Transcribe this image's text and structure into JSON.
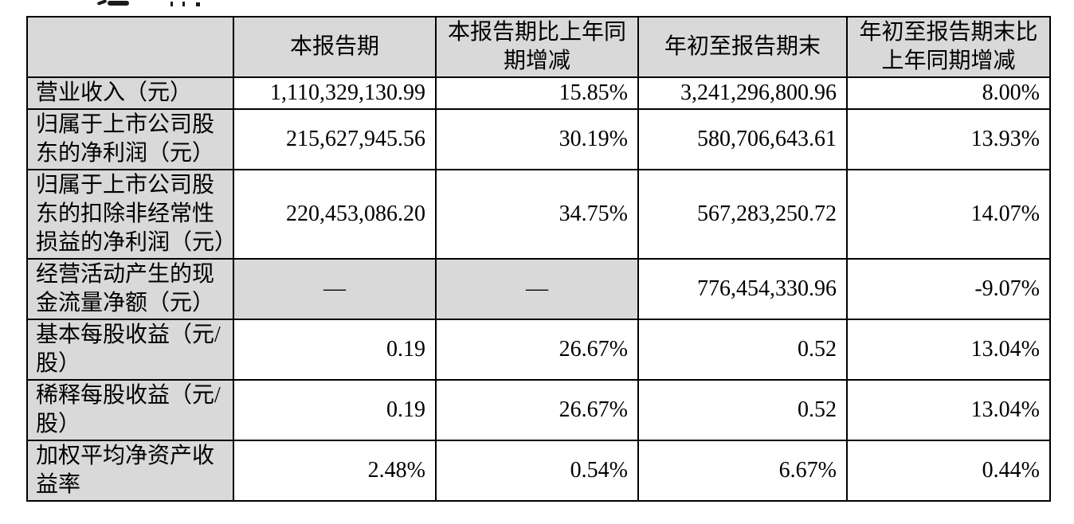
{
  "page": {
    "background": "#ffffff",
    "note_fragment": "clipped-illegible-text-at-top-edge"
  },
  "table": {
    "colors": {
      "header_bg": "#d9d9d9",
      "label_bg": "#d9d9d9",
      "border": "#000000",
      "text": "#000000"
    },
    "headers": [
      "",
      "本报告期",
      "本报告期比上年同期增减",
      "年初至报告期末",
      "年初至报告期末比上年同期增减"
    ],
    "rows": [
      {
        "label": "营业收入（元）",
        "values": [
          "1,110,329,130.99",
          "15.85%",
          "3,241,296,800.96",
          "8.00%"
        ],
        "gray_cells": []
      },
      {
        "label": "归属于上市公司股东的净利润（元）",
        "values": [
          "215,627,945.56",
          "30.19%",
          "580,706,643.61",
          "13.93%"
        ],
        "gray_cells": []
      },
      {
        "label": "归属于上市公司股东的扣除非经常性损益的净利润（元）",
        "values": [
          "220,453,086.20",
          "34.75%",
          "567,283,250.72",
          "14.07%"
        ],
        "gray_cells": []
      },
      {
        "label": "经营活动产生的现金流量净额（元）",
        "values": [
          "—",
          "—",
          "776,454,330.96",
          "-9.07%"
        ],
        "gray_cells": [
          0,
          1
        ]
      },
      {
        "label": "基本每股收益（元/股）",
        "values": [
          "0.19",
          "26.67%",
          "0.52",
          "13.04%"
        ],
        "gray_cells": []
      },
      {
        "label": "稀释每股收益（元/股）",
        "values": [
          "0.19",
          "26.67%",
          "0.52",
          "13.04%"
        ],
        "gray_cells": []
      },
      {
        "label": "加权平均净资产收益率",
        "values": [
          "2.48%",
          "0.54%",
          "6.67%",
          "0.44%"
        ],
        "gray_cells": []
      }
    ]
  }
}
